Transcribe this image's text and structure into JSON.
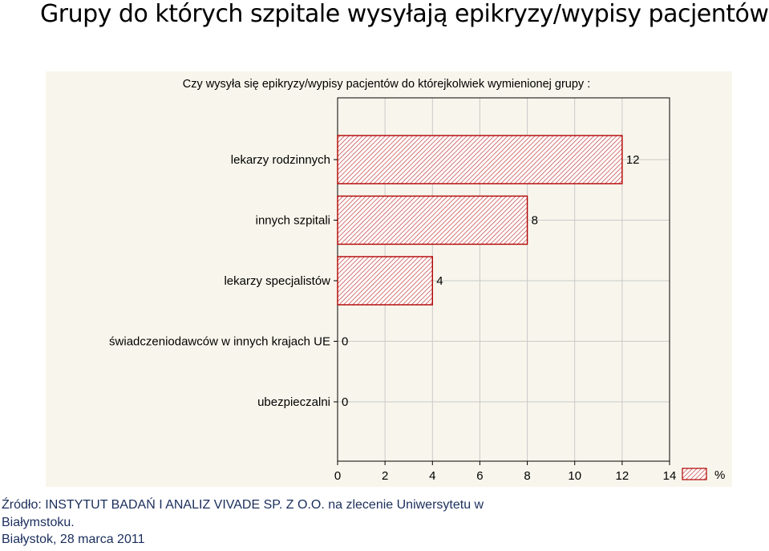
{
  "page": {
    "title": "Grupy do których szpitale wysyłają epikryzy/wypisy pacjentów",
    "source_line1": "Źródło: INSTYTUT BADAŃ I ANALIZ VIVADE SP. Z O.O. na zlecenie Uniwersytetu w",
    "source_line2": "Białymstoku.",
    "source_line3": "Białystok, 28 marca 2011"
  },
  "chart_data": {
    "type": "bar",
    "orientation": "horizontal",
    "title": "Czy wysyła się epikryzy/wypisy pacjentów do którejkolwiek  wymienionej grupy :",
    "categories": [
      "lekarzy rodzinnych",
      "innych szpitali",
      "lekarzy specjalistów",
      "świadczeniodawców w innych krajach UE",
      "ubezpieczalni"
    ],
    "values": [
      12,
      8,
      4,
      0,
      0
    ],
    "value_labels": [
      "12",
      "8",
      "4",
      "0",
      "0"
    ],
    "xlim": [
      0,
      14
    ],
    "xticks": [
      "0",
      "2",
      "4",
      "6",
      "8",
      "10",
      "12",
      "14"
    ],
    "legend": "%",
    "legend_position": "bottom-right",
    "grid": true,
    "bar_color": "#b00000",
    "hatch_color": "#c23a3a"
  }
}
